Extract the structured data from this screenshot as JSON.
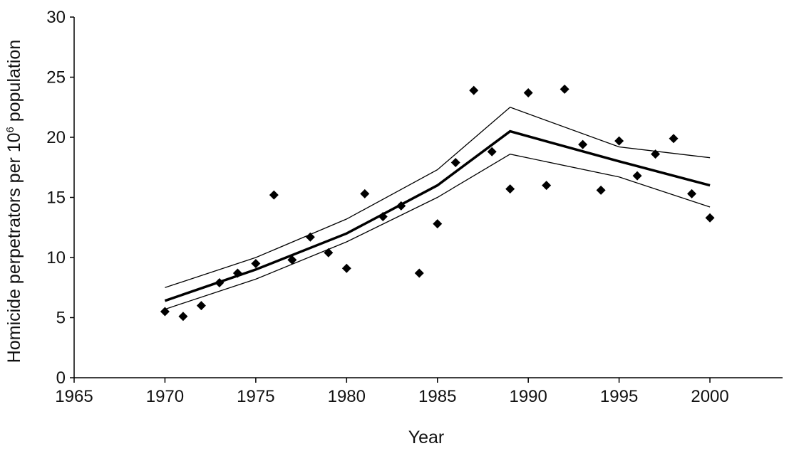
{
  "chart_data": {
    "type": "scatter",
    "title": "",
    "xlabel": "Year",
    "ylabel": "Homicide perpetrators per 10",
    "ylabel_superscript": "6",
    "ylabel_suffix": " population",
    "xlim": [
      1965,
      2004
    ],
    "ylim": [
      0,
      30
    ],
    "xticks": [
      1965,
      1970,
      1975,
      1980,
      1985,
      1990,
      1995,
      2000
    ],
    "yticks": [
      0,
      5,
      10,
      15,
      20,
      25,
      30
    ],
    "grid": false,
    "legend": "none",
    "marker_color": "#000000",
    "points": {
      "x": [
        1970,
        1971,
        1972,
        1973,
        1974,
        1975,
        1976,
        1977,
        1978,
        1979,
        1980,
        1981,
        1982,
        1983,
        1984,
        1985,
        1986,
        1987,
        1988,
        1989,
        1990,
        1991,
        1992,
        1993,
        1994,
        1995,
        1996,
        1997,
        1998,
        1999,
        2000
      ],
      "y": [
        5.5,
        5.1,
        6.0,
        7.9,
        8.7,
        9.5,
        15.2,
        9.8,
        11.7,
        10.4,
        9.1,
        15.3,
        13.4,
        14.3,
        8.7,
        12.8,
        17.9,
        23.9,
        18.8,
        15.7,
        23.7,
        16.0,
        24.0,
        19.4,
        15.6,
        19.7,
        16.8,
        18.6,
        19.9,
        15.3,
        13.3
      ]
    },
    "fit": {
      "x": [
        1970,
        1975,
        1980,
        1985,
        1989,
        1995,
        2000
      ],
      "y": [
        6.4,
        9.0,
        12.0,
        16.0,
        20.5,
        18.0,
        16.0
      ]
    },
    "upper": {
      "x": [
        1970,
        1975,
        1980,
        1985,
        1989,
        1995,
        2000
      ],
      "y": [
        7.5,
        10.0,
        13.2,
        17.3,
        22.5,
        19.2,
        18.3
      ]
    },
    "lower": {
      "x": [
        1970,
        1975,
        1980,
        1985,
        1989,
        1995,
        2000
      ],
      "y": [
        5.7,
        8.2,
        11.3,
        15.0,
        18.6,
        16.7,
        14.2
      ]
    }
  }
}
